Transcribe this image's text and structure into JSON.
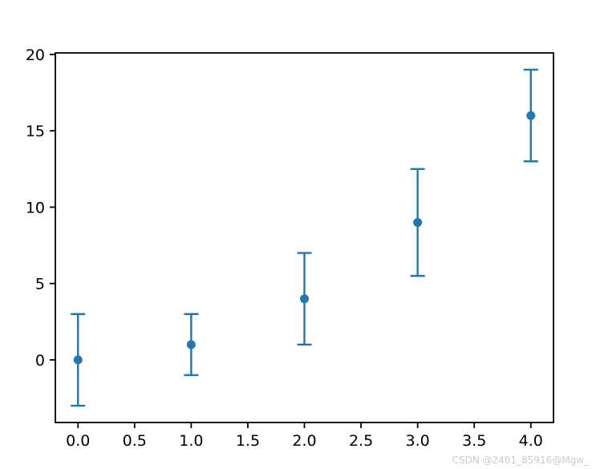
{
  "figure": {
    "background": "#ffffff",
    "watermark_text": "CSDN @2401_85916@Mgw_",
    "watermark_color": "#cccccc"
  },
  "chart_data": {
    "type": "scatter",
    "subtype": "errorbar",
    "title": "",
    "xlabel": "",
    "ylabel": "",
    "x": [
      0,
      1,
      2,
      3,
      4
    ],
    "y": [
      0,
      1,
      4,
      9,
      16
    ],
    "yerr": [
      3,
      2,
      3,
      3.5,
      3
    ],
    "xlim": [
      -0.2,
      4.2
    ],
    "ylim": [
      -4.1,
      20.1
    ],
    "xticks": [
      0,
      0.5,
      1,
      1.5,
      2,
      2.5,
      3,
      3.5,
      4
    ],
    "xtick_labels": [
      "0.0",
      "0.5",
      "1.0",
      "1.5",
      "2.0",
      "2.5",
      "3.0",
      "3.5",
      "4.0"
    ],
    "yticks": [
      0,
      5,
      10,
      15,
      20
    ],
    "ytick_labels": [
      "0",
      "5",
      "10",
      "15",
      "20"
    ],
    "grid": false,
    "legend": null,
    "series_color": "#1f77b4",
    "spine_color": "#000000",
    "tick_label_color": "#000000",
    "marker": "circle"
  }
}
